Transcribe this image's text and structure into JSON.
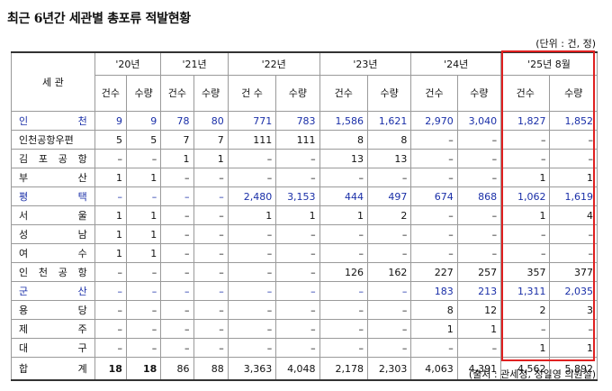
{
  "title": "최근 6년간 세관별 총포류 적발현황",
  "unit": "(단위 : 건, 정)",
  "source": "(출처 : 관세청, 정일영 의원실)",
  "table": {
    "corner": "세 관",
    "years": [
      "'20년",
      "'21년",
      "'22년",
      "'23년",
      "'24년",
      "'25년 8월"
    ],
    "subheaders": [
      "건수",
      "수량",
      "건수",
      "수량",
      "건 수",
      "수량",
      "건수",
      "수량",
      "건수",
      "수량",
      "건수",
      "수량"
    ],
    "rows": [
      {
        "name": "인 천",
        "blue": true,
        "cells": [
          "9",
          "9",
          "78",
          "80",
          "771",
          "783",
          "1,586",
          "1,621",
          "2,970",
          "3,040",
          "1,827",
          "1,852"
        ]
      },
      {
        "name": "인천공항우편",
        "blue": false,
        "cells": [
          "5",
          "5",
          "7",
          "7",
          "111",
          "111",
          "8",
          "8",
          "–",
          "–",
          "–",
          "–"
        ]
      },
      {
        "name": "김 포 공 항",
        "blue": false,
        "cells": [
          "–",
          "–",
          "1",
          "1",
          "–",
          "–",
          "13",
          "13",
          "–",
          "–",
          "–",
          "–"
        ]
      },
      {
        "name": "부 산",
        "blue": false,
        "cells": [
          "1",
          "1",
          "–",
          "–",
          "–",
          "–",
          "–",
          "–",
          "–",
          "–",
          "1",
          "1"
        ]
      },
      {
        "name": "평 택",
        "blue": true,
        "cells": [
          "–",
          "–",
          "–",
          "–",
          "2,480",
          "3,153",
          "444",
          "497",
          "674",
          "868",
          "1,062",
          "1,619"
        ]
      },
      {
        "name": "서 울",
        "blue": false,
        "cells": [
          "1",
          "1",
          "–",
          "–",
          "1",
          "1",
          "1",
          "2",
          "–",
          "–",
          "1",
          "4"
        ]
      },
      {
        "name": "성 남",
        "blue": false,
        "cells": [
          "1",
          "1",
          "–",
          "–",
          "–",
          "–",
          "–",
          "–",
          "–",
          "–",
          "–",
          "–"
        ]
      },
      {
        "name": "여 수",
        "blue": false,
        "cells": [
          "1",
          "1",
          "–",
          "–",
          "–",
          "–",
          "–",
          "–",
          "–",
          "–",
          "–",
          "–"
        ]
      },
      {
        "name": "인 천 공 항",
        "blue": false,
        "cells": [
          "–",
          "–",
          "–",
          "–",
          "–",
          "–",
          "126",
          "162",
          "227",
          "257",
          "357",
          "377"
        ]
      },
      {
        "name": "군 산",
        "blue": true,
        "cells": [
          "–",
          "–",
          "–",
          "–",
          "–",
          "–",
          "–",
          "–",
          "183",
          "213",
          "1,311",
          "2,035"
        ]
      },
      {
        "name": "용 당",
        "blue": false,
        "cells": [
          "–",
          "–",
          "–",
          "–",
          "–",
          "–",
          "–",
          "–",
          "8",
          "12",
          "2",
          "3"
        ]
      },
      {
        "name": "제 주",
        "blue": false,
        "cells": [
          "–",
          "–",
          "–",
          "–",
          "–",
          "–",
          "–",
          "–",
          "1",
          "1",
          "–",
          "–"
        ]
      },
      {
        "name": "대 구",
        "blue": false,
        "cells": [
          "–",
          "–",
          "–",
          "–",
          "–",
          "–",
          "–",
          "–",
          "–",
          "–",
          "1",
          "1"
        ]
      }
    ],
    "total": {
      "name": "합 계",
      "cells": [
        "18",
        "18",
        "86",
        "88",
        "3,363",
        "4,048",
        "2,178",
        "2,303",
        "4,063",
        "4,391",
        "4,562",
        "5,892"
      ]
    }
  },
  "highlight_color": "#e02020",
  "accent_blue": "#1a2fa8"
}
